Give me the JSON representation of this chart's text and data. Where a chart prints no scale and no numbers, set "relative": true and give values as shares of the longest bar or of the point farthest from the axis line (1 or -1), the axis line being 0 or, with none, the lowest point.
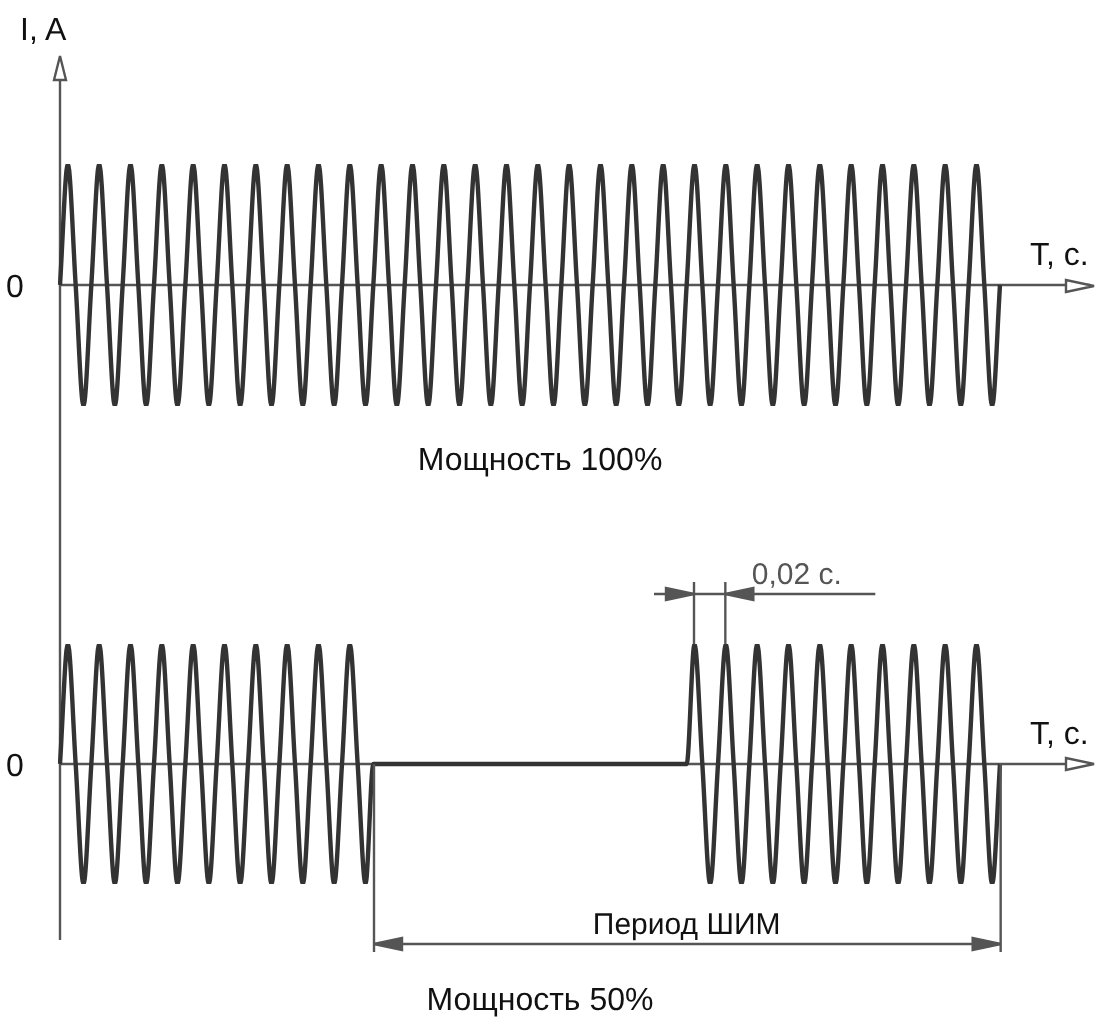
{
  "chart_data": [
    {
      "type": "line",
      "title": "Мощность 100%",
      "ylabel": "I, A",
      "xlabel": "T, с.",
      "relative": true,
      "color": "#333333",
      "categories": [
        null,
        null,
        null,
        null,
        null,
        null,
        null,
        null,
        null,
        null,
        null,
        null,
        null,
        null,
        null,
        null,
        null,
        null,
        null,
        null,
        null,
        null,
        null,
        null,
        null,
        null,
        null,
        null,
        null,
        null,
        null,
        null,
        null,
        null,
        null,
        null,
        null,
        null,
        null,
        null,
        null,
        null,
        null,
        null,
        null,
        null,
        null,
        null,
        null,
        null,
        null,
        null,
        null,
        null,
        null,
        null,
        null,
        null,
        null,
        null,
        null,
        null,
        null,
        null,
        null,
        null,
        null,
        null,
        null,
        null,
        null,
        null,
        null,
        null,
        null,
        null,
        null,
        null,
        null,
        null,
        null,
        null,
        null,
        null,
        null,
        null,
        null,
        null,
        null,
        null,
        null,
        null,
        null,
        null,
        null,
        null,
        null,
        null,
        null,
        null,
        null,
        null,
        null,
        null,
        null,
        null,
        null,
        null,
        null,
        null,
        null,
        null,
        null,
        null,
        null,
        null,
        null,
        null,
        null,
        null,
        null
      ],
      "values": [
        0,
        1,
        0,
        -1,
        0,
        1,
        0,
        -1,
        0,
        1,
        0,
        -1,
        0,
        1,
        0,
        -1,
        0,
        1,
        0,
        -1,
        0,
        1,
        0,
        -1,
        0,
        1,
        0,
        -1,
        0,
        1,
        0,
        -1,
        0,
        1,
        0,
        -1,
        0,
        1,
        0,
        -1,
        0,
        1,
        0,
        -1,
        0,
        1,
        0,
        -1,
        0,
        1,
        0,
        -1,
        0,
        1,
        0,
        -1,
        0,
        1,
        0,
        -1,
        0,
        1,
        0,
        -1,
        0,
        1,
        0,
        -1,
        0,
        1,
        0,
        -1,
        0,
        1,
        0,
        -1,
        0,
        1,
        0,
        -1,
        0,
        1,
        0,
        -1,
        0,
        1,
        0,
        -1,
        0,
        1,
        0,
        -1,
        0,
        1,
        0,
        -1,
        0,
        1,
        0,
        -1,
        0,
        1,
        0,
        -1,
        0,
        1,
        0,
        -1,
        0,
        1,
        0,
        -1,
        0,
        1,
        0,
        -1,
        0,
        1,
        0,
        -1,
        0
      ],
      "annotations": [
        "0"
      ]
    },
    {
      "type": "line",
      "title": "Мощность 50%",
      "xlabel": "T, с.",
      "relative": true,
      "color": "#333333",
      "categories": [
        null,
        null,
        null,
        null,
        null,
        null,
        null,
        null,
        null,
        null,
        null,
        null,
        null,
        null,
        null,
        null,
        null,
        null,
        null,
        null,
        null,
        null,
        null,
        null,
        null,
        null,
        null,
        null,
        null,
        null,
        null,
        null,
        null,
        null,
        null,
        null,
        null,
        null,
        null,
        null,
        null,
        null,
        null,
        null,
        null,
        null,
        null,
        null,
        null,
        null,
        null,
        null,
        null,
        null,
        null,
        null,
        null,
        null,
        null,
        null,
        null,
        null,
        null,
        null,
        null,
        null,
        null,
        null,
        null,
        null,
        null,
        null,
        null,
        null,
        null,
        null,
        null,
        null,
        null,
        null,
        null,
        null,
        null,
        null,
        null,
        null,
        null,
        null,
        null,
        null,
        null,
        null,
        null,
        null,
        null,
        null,
        null,
        null,
        null,
        null,
        null,
        null,
        null,
        null,
        null,
        null,
        null,
        null,
        null,
        null,
        null,
        null,
        null,
        null,
        null,
        null,
        null,
        null,
        null,
        null,
        null
      ],
      "values": [
        0,
        1,
        0,
        -1,
        0,
        1,
        0,
        -1,
        0,
        1,
        0,
        -1,
        0,
        1,
        0,
        -1,
        0,
        1,
        0,
        -1,
        0,
        1,
        0,
        -1,
        0,
        1,
        0,
        -1,
        0,
        1,
        0,
        -1,
        0,
        1,
        0,
        -1,
        0,
        1,
        0,
        -1,
        0,
        0,
        0,
        0,
        0,
        0,
        0,
        0,
        0,
        0,
        0,
        0,
        0,
        0,
        0,
        0,
        0,
        0,
        0,
        0,
        0,
        0,
        0,
        0,
        0,
        0,
        0,
        0,
        0,
        0,
        0,
        0,
        0,
        0,
        0,
        0,
        0,
        0,
        0,
        0,
        0,
        1,
        0,
        -1,
        0,
        1,
        0,
        -1,
        0,
        1,
        0,
        -1,
        0,
        1,
        0,
        -1,
        0,
        1,
        0,
        -1,
        0,
        1,
        0,
        -1,
        0,
        1,
        0,
        -1,
        0,
        1,
        0,
        -1,
        0,
        1,
        0,
        -1,
        0,
        1,
        0,
        -1,
        0
      ],
      "annotations": [
        "0",
        "0,02 с.",
        "Период ШИМ"
      ]
    }
  ]
}
